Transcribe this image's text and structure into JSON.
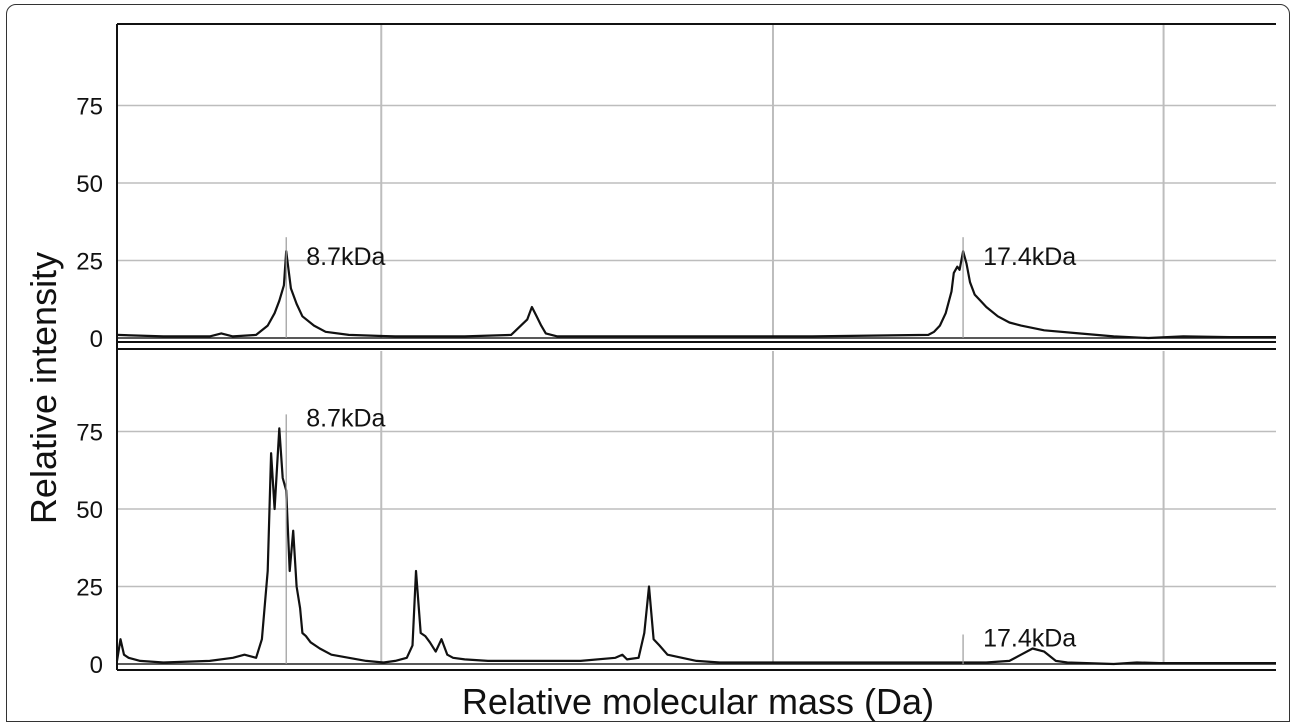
{
  "chart_data": {
    "type": "line",
    "xlabel": "Relative molecular mass (Da)",
    "ylabel": "Relative intensity",
    "panels": [
      {
        "name": "",
        "ylim": [
          0,
          100
        ],
        "yticks": [
          0,
          25,
          50,
          75
        ],
        "xlim": [
          0,
          1000
        ],
        "xgrid": [
          228,
          566,
          903
        ],
        "grid": true,
        "series": [
          {
            "name": "",
            "x": [
              0,
              40,
              80,
              90,
              100,
              120,
              130,
              136,
              140,
              144,
              146,
              150,
              155,
              160,
              170,
              180,
              200,
              240,
              300,
              340,
              354,
              358,
              362,
              366,
              370,
              380,
              400,
              500,
              600,
              700,
              705,
              710,
              715,
              720,
              722,
              725,
              727,
              730,
              733,
              736,
              740,
              745,
              750,
              760,
              770,
              780,
              800,
              830,
              860,
              890,
              920,
              960,
              1000
            ],
            "values": [
              1,
              0.5,
              0.5,
              1.5,
              0.5,
              1,
              4,
              8,
              12,
              17,
              28,
              16,
              11,
              7,
              4,
              2,
              1,
              0.5,
              0.5,
              1,
              6,
              10,
              7,
              4,
              1.5,
              0.5,
              0.5,
              0.5,
              0.5,
              1,
              2,
              4,
              8,
              15,
              21,
              23,
              22,
              28,
              24,
              18,
              14,
              12,
              10,
              7,
              5,
              4,
              2.5,
              1.5,
              0.5,
              0,
              0.5,
              0.3,
              0.3
            ]
          }
        ],
        "annotations": [
          {
            "text": "8.7kDa",
            "x": 146,
            "y": 28
          },
          {
            "text": "17.4kDa",
            "x": 730,
            "y": 28
          }
        ]
      },
      {
        "name": "",
        "ylim": [
          0,
          100
        ],
        "yticks": [
          0,
          25,
          50,
          75
        ],
        "xlim": [
          0,
          1000
        ],
        "xgrid": [
          228,
          566,
          903
        ],
        "grid": true,
        "series": [
          {
            "name": "",
            "x": [
              0,
              3,
              6,
              10,
              20,
              40,
              80,
              100,
              110,
              120,
              125,
              130,
              133,
              136,
              140,
              143,
              146,
              149,
              152,
              155,
              158,
              160,
              163,
              167,
              175,
              185,
              200,
              215,
              230,
              240,
              250,
              255,
              258,
              262,
              266,
              270,
              275,
              280,
              285,
              290,
              300,
              320,
              350,
              360,
              400,
              430,
              436,
              440,
              450,
              455,
              459,
              463,
              468,
              475,
              500,
              520,
              600,
              700,
              750,
              770,
              780,
              790,
              800,
              810,
              820,
              860,
              880,
              900,
              930,
              960,
              1000
            ],
            "values": [
              1,
              8,
              3,
              2,
              1,
              0.5,
              1,
              2,
              3,
              2,
              8,
              30,
              68,
              50,
              76,
              60,
              56,
              30,
              43,
              25,
              18,
              10,
              9,
              7,
              5,
              3,
              2,
              1,
              0.5,
              1,
              2,
              6,
              30,
              10,
              9,
              7,
              4,
              8,
              3,
              2,
              1.5,
              1,
              1,
              1,
              1,
              2,
              3,
              1.5,
              2,
              10,
              25,
              8,
              6,
              3,
              1,
              0.5,
              0.5,
              0.5,
              0.5,
              1,
              3,
              5,
              4,
              1,
              0.5,
              0,
              0.5,
              0.3,
              0.3,
              0.3,
              0.3
            ]
          }
        ],
        "annotations": [
          {
            "text": "8.7kDa",
            "x": 146,
            "y": 76
          },
          {
            "text": "17.4kDa",
            "x": 730,
            "y": 5
          }
        ]
      }
    ]
  }
}
